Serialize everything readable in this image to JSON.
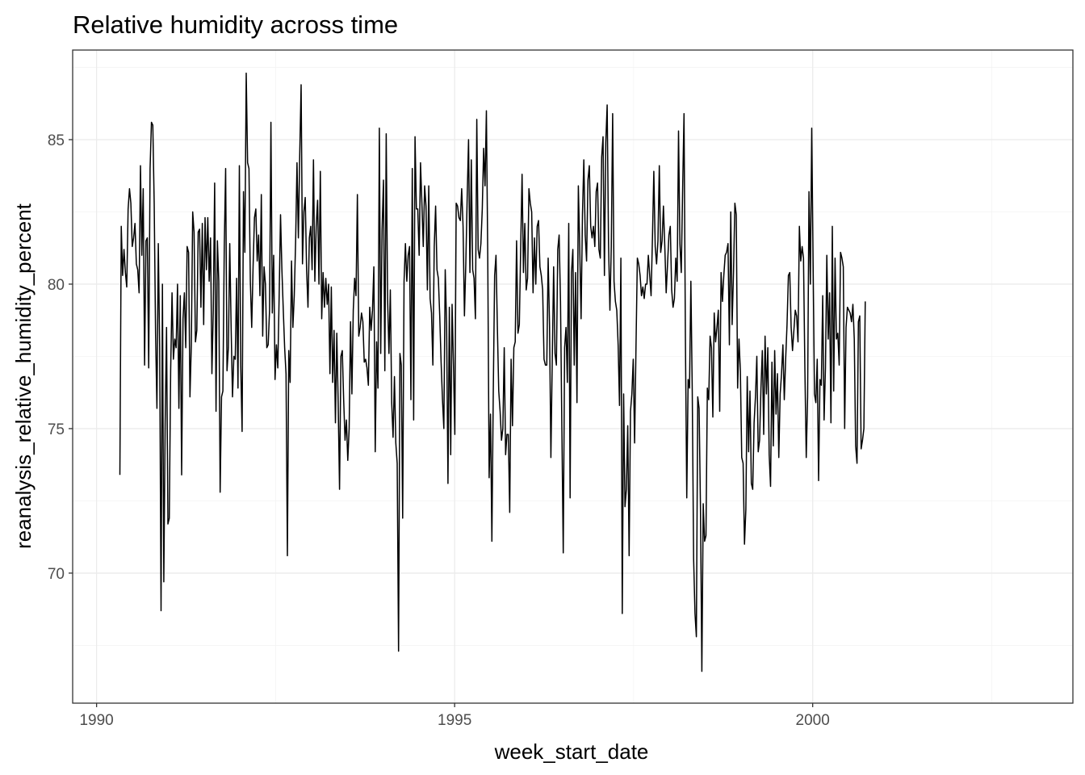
{
  "chart_data": {
    "type": "line",
    "title": "Relative humidity across time",
    "xlabel": "week_start_date",
    "ylabel": "reanalysis_relative_humidity_percent",
    "x_ticks": [
      {
        "value": "1990-01-01",
        "label": "1990"
      },
      {
        "value": "1995-01-01",
        "label": "1995"
      },
      {
        "value": "2000-01-01",
        "label": "2000"
      }
    ],
    "y_ticks": [
      70,
      75,
      80,
      85
    ],
    "xlim": [
      "1989-09-01",
      "2003-08-20"
    ],
    "ylim": [
      65.5,
      88.1
    ],
    "grid": true,
    "series": [
      {
        "start_date": "1990-04-30",
        "interval_days": 7,
        "values": [
          73.4,
          82.0,
          80.3,
          81.2,
          80.4,
          79.9,
          82.6,
          83.3,
          82.8,
          81.3,
          81.6,
          82.1,
          80.7,
          80.5,
          79.7,
          84.1,
          81.0,
          83.3,
          77.2,
          81.5,
          81.6,
          77.1,
          84.0,
          85.6,
          85.5,
          82.8,
          78.3,
          75.7,
          81.4,
          77.8,
          68.7,
          80.0,
          69.7,
          75.2,
          78.5,
          71.7,
          71.9,
          77.0,
          79.7,
          77.4,
          78.1,
          77.8,
          80.0,
          75.7,
          79.6,
          73.4,
          78.8,
          79.7,
          77.8,
          81.3,
          81.1,
          76.1,
          77.9,
          82.5,
          81.8,
          78.0,
          78.4,
          81.8,
          81.9,
          79.2,
          82.1,
          78.6,
          82.3,
          80.5,
          82.3,
          80.1,
          81.6,
          76.9,
          79.1,
          83.5,
          75.6,
          81.5,
          80.1,
          72.8,
          76.1,
          76.3,
          81.3,
          84.0,
          77.0,
          77.8,
          81.4,
          78.5,
          76.1,
          77.5,
          77.4,
          80.2,
          76.4,
          84.1,
          77.2,
          74.9,
          83.2,
          81.1,
          87.3,
          84.2,
          84.0,
          80.1,
          78.5,
          80.6,
          82.3,
          82.6,
          80.8,
          81.7,
          79.6,
          83.1,
          78.2,
          80.6,
          80.0,
          77.8,
          77.9,
          79.1,
          85.6,
          79.0,
          81.0,
          76.7,
          77.9,
          77.1,
          79.6,
          82.4,
          80.5,
          79.1,
          77.8,
          76.9,
          70.6,
          77.7,
          76.6,
          80.8,
          78.5,
          79.6,
          81.5,
          84.2,
          81.6,
          84.5,
          86.9,
          80.7,
          82.5,
          83.0,
          80.5,
          79.2,
          81.6,
          82.0,
          80.5,
          84.3,
          80.1,
          82.0,
          82.9,
          80.0,
          83.9,
          78.8,
          80.4,
          79.2,
          80.2,
          79.3,
          80.0,
          76.9,
          79.9,
          76.6,
          78.4,
          75.2,
          78.3,
          75.9,
          72.9,
          77.5,
          77.7,
          76.0,
          74.6,
          75.3,
          73.9,
          75.0,
          78.7,
          76.2,
          79.1,
          80.2,
          79.6,
          83.1,
          78.2,
          78.5,
          79.0,
          78.7,
          77.3,
          77.4,
          77.1,
          76.5,
          79.2,
          78.4,
          79.1,
          80.6,
          74.2,
          78.0,
          76.4,
          85.4,
          77.6,
          81.9,
          83.6,
          77.0,
          85.2,
          79.5,
          77.6,
          79.8,
          75.9,
          74.7,
          76.8,
          74.5,
          73.8,
          67.3,
          77.6,
          77.2,
          71.9,
          80.1,
          81.4,
          80.1,
          81.0,
          81.3,
          76.0,
          84.0,
          75.3,
          85.1,
          82.6,
          82.6,
          81.0,
          84.2,
          82.8,
          81.3,
          83.4,
          82.7,
          79.8,
          83.4,
          79.5,
          79.0,
          77.2,
          81.3,
          82.7,
          80.5,
          80.2,
          78.9,
          77.3,
          76.0,
          75.0,
          80.5,
          78.6,
          73.1,
          79.2,
          74.1,
          79.3,
          77.2,
          74.8,
          82.8,
          82.7,
          82.3,
          82.2,
          83.3,
          82.0,
          78.9,
          80.7,
          83.0,
          85.0,
          80.4,
          84.3,
          80.5,
          80.2,
          78.8,
          85.7,
          81.2,
          80.9,
          81.4,
          82.6,
          84.7,
          83.4,
          86.0,
          80.9,
          73.3,
          75.5,
          71.1,
          76.2,
          80.3,
          81.0,
          78.5,
          76.3,
          75.6,
          74.6,
          75.0,
          77.8,
          74.1,
          74.8,
          74.8,
          72.1,
          77.4,
          75.1,
          77.8,
          78.0,
          81.5,
          78.3,
          78.6,
          81.3,
          83.8,
          80.4,
          82.1,
          79.8,
          80.2,
          83.3,
          82.8,
          82.5,
          79.7,
          81.6,
          80.0,
          82.0,
          82.2,
          80.6,
          80.3,
          79.8,
          77.4,
          77.2,
          77.2,
          80.9,
          78.6,
          74.0,
          77.4,
          80.6,
          77.6,
          77.2,
          81.2,
          81.7,
          79.4,
          75.0,
          70.7,
          77.8,
          78.5,
          76.6,
          82.1,
          72.6,
          80.4,
          81.2,
          77.2,
          80.4,
          75.9,
          83.4,
          81.3,
          78.8,
          82.4,
          84.3,
          81.7,
          80.8,
          83.6,
          84.1,
          82.0,
          81.6,
          82.0,
          81.3,
          83.2,
          83.5,
          81.2,
          80.9,
          84.4,
          85.1,
          80.3,
          84.9,
          86.2,
          81.4,
          79.1,
          81.3,
          85.9,
          80.1,
          79.4,
          79.1,
          77.9,
          75.8,
          80.9,
          68.6,
          76.2,
          72.3,
          72.9,
          75.1,
          70.6,
          75.6,
          76.2,
          77.4,
          74.5,
          77.8,
          80.9,
          80.7,
          80.3,
          79.6,
          79.9,
          79.5,
          80.0,
          80.0,
          81.0,
          80.3,
          79.6,
          81.6,
          83.9,
          81.3,
          80.7,
          81.5,
          84.1,
          81.1,
          81.5,
          82.7,
          81.3,
          79.7,
          80.7,
          81.7,
          82.0,
          79.8,
          79.2,
          79.5,
          80.9,
          80.1,
          85.3,
          81.4,
          80.4,
          83.3,
          85.9,
          78.2,
          72.6,
          76.7,
          76.4,
          80.1,
          76.3,
          70.5,
          68.6,
          67.8,
          76.1,
          75.7,
          72.2,
          66.6,
          72.4,
          71.1,
          71.3,
          76.4,
          76.0,
          78.2,
          77.8,
          75.4,
          79.0,
          78.0,
          78.5,
          79.1,
          75.6,
          80.4,
          79.4,
          80.3,
          81.0,
          81.1,
          81.4,
          77.9,
          82.5,
          78.6,
          80.4,
          82.8,
          82.4,
          76.4,
          78.1,
          77.0,
          74.0,
          73.8,
          71.0,
          72.2,
          76.8,
          74.2,
          76.3,
          73.1,
          72.9,
          75.2,
          76.1,
          77.5,
          74.2,
          74.6,
          76.4,
          77.7,
          74.8,
          78.2,
          76.2,
          77.8,
          74.1,
          73.0,
          77.3,
          74.4,
          77.7,
          75.5,
          76.9,
          74.0,
          76.2,
          76.9,
          77.9,
          76.0,
          77.4,
          78.6,
          80.3,
          80.4,
          78.5,
          77.7,
          78.4,
          79.1,
          78.9,
          78.0,
          82.0,
          80.8,
          81.3,
          80.9,
          77.1,
          74.0,
          76.1,
          83.2,
          80.0,
          85.4,
          80.7,
          76.2,
          75.9,
          77.4,
          73.2,
          76.7,
          76.5,
          79.6,
          75.3,
          77.1,
          81.0,
          78.1,
          79.7,
          75.2,
          82.0,
          76.3,
          80.9,
          78.1,
          78.3,
          77.2,
          81.1,
          80.9,
          80.6,
          75.0,
          78.5,
          79.2,
          79.1,
          79.0,
          78.7,
          79.3,
          78.1,
          74.4,
          73.8,
          78.7,
          78.9,
          74.3,
          74.6,
          75.0,
          79.4
        ]
      }
    ]
  }
}
